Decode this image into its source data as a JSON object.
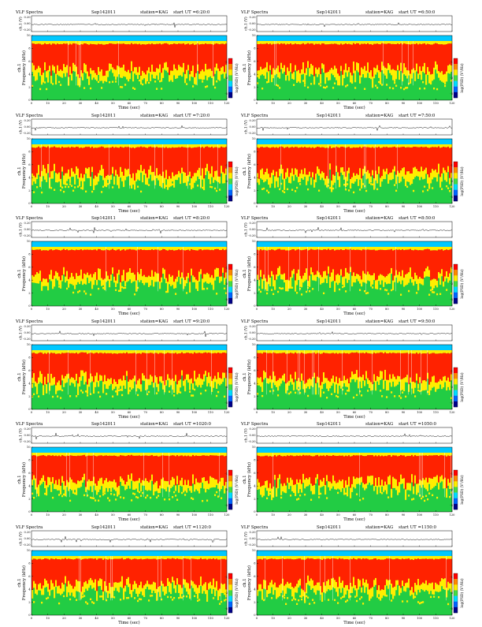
{
  "common": {
    "title": "VLF Spectra",
    "date": "Sep142011",
    "station": "station=KAG",
    "start_prefix": "start  UT",
    "ch_label": "ch.1 (V)",
    "ch_ticks": [
      "0.20",
      "0.00",
      "-0.20"
    ],
    "ylabel_top": "ch.1",
    "ylabel": "Frequency  (kHz)",
    "xlabel": "Time  (sec)",
    "x_ticks": [
      "0",
      "10",
      "20",
      "30",
      "40",
      "50",
      "60",
      "70",
      "80",
      "90",
      "100",
      "110",
      "120"
    ],
    "y_ticks": [
      "0",
      "2",
      "4",
      "6",
      "8",
      "10"
    ],
    "cbar_label": "log(PSD) (V²/Hz)",
    "cbar_ticks": [
      "-1",
      "-3",
      "-5"
    ]
  },
  "colors": {
    "background_band": "#00c8ff",
    "low": "#22cc44",
    "mid": "#ffee00",
    "high": "#ff2200",
    "colorbar": [
      "#ff0000",
      "#ff8800",
      "#ffee00",
      "#44dd44",
      "#00ddff",
      "#0066ff",
      "#000088"
    ]
  },
  "chart_data": [
    {
      "type": "heatmap",
      "title": "VLF Spectra",
      "start_ut": "=6:20:0",
      "xlabel": "Time  (sec)",
      "ylabel": "Frequency  (kHz)",
      "xlim": [
        0,
        120
      ],
      "ylim": [
        0,
        10
      ],
      "waveform_ylim": [
        -0.2,
        0.2
      ],
      "colorbar_label": "log(PSD) (V²/Hz)"
    },
    {
      "type": "heatmap",
      "title": "VLF Spectra",
      "start_ut": "=6:50:0",
      "xlabel": "Time  (sec)",
      "ylabel": "Frequency  (kHz)",
      "xlim": [
        0,
        120
      ],
      "ylim": [
        0,
        10
      ],
      "waveform_ylim": [
        -0.2,
        0.2
      ],
      "colorbar_label": "log(PSD) (V²/Hz)"
    },
    {
      "type": "heatmap",
      "title": "VLF Spectra",
      "start_ut": "=7:20:0",
      "xlabel": "Time  (sec)",
      "ylabel": "Frequency  (kHz)",
      "xlim": [
        0,
        120
      ],
      "ylim": [
        0,
        10
      ],
      "waveform_ylim": [
        -0.2,
        0.2
      ],
      "colorbar_label": "log(PSD) (V²/Hz)"
    },
    {
      "type": "heatmap",
      "title": "VLF Spectra",
      "start_ut": "=7:50:0",
      "xlabel": "Time  (sec)",
      "ylabel": "Frequency  (kHz)",
      "xlim": [
        0,
        120
      ],
      "ylim": [
        0,
        10
      ],
      "waveform_ylim": [
        -0.2,
        0.2
      ],
      "colorbar_label": "log(PSD) (V²/Hz)"
    },
    {
      "type": "heatmap",
      "title": "VLF Spectra",
      "start_ut": "=8:20:0",
      "xlabel": "Time  (sec)",
      "ylabel": "Frequency  (kHz)",
      "xlim": [
        0,
        120
      ],
      "ylim": [
        0,
        10
      ],
      "waveform_ylim": [
        -0.2,
        0.2
      ],
      "colorbar_label": "log(PSD) (V²/Hz)"
    },
    {
      "type": "heatmap",
      "title": "VLF Spectra",
      "start_ut": "=8:50:0",
      "xlabel": "Time  (sec)",
      "ylabel": "Frequency  (kHz)",
      "xlim": [
        0,
        120
      ],
      "ylim": [
        0,
        10
      ],
      "waveform_ylim": [
        -0.2,
        0.2
      ],
      "colorbar_label": "log(PSD) (V²/Hz)"
    },
    {
      "type": "heatmap",
      "title": "VLF Spectra",
      "start_ut": "=9:20:0",
      "xlabel": "Time  (sec)",
      "ylabel": "Frequency  (kHz)",
      "xlim": [
        0,
        120
      ],
      "ylim": [
        0,
        10
      ],
      "waveform_ylim": [
        -0.2,
        0.2
      ],
      "colorbar_label": "log(PSD) (V²/Hz)"
    },
    {
      "type": "heatmap",
      "title": "VLF Spectra",
      "start_ut": "=9:50:0",
      "xlabel": "Time  (sec)",
      "ylabel": "Frequency  (kHz)",
      "xlim": [
        0,
        120
      ],
      "ylim": [
        0,
        10
      ],
      "waveform_ylim": [
        -0.2,
        0.2
      ],
      "colorbar_label": "log(PSD) (V²/Hz)"
    },
    {
      "type": "heatmap",
      "title": "VLF Spectra",
      "start_ut": "=1020:0",
      "xlabel": "Time  (sec)",
      "ylabel": "Frequency  (kHz)",
      "xlim": [
        0,
        120
      ],
      "ylim": [
        0,
        10
      ],
      "waveform_ylim": [
        -0.2,
        0.2
      ],
      "colorbar_label": "log(PSD) (V²/Hz)"
    },
    {
      "type": "heatmap",
      "title": "VLF Spectra",
      "start_ut": "=1050:0",
      "xlabel": "Time  (sec)",
      "ylabel": "Frequency  (kHz)",
      "xlim": [
        0,
        120
      ],
      "ylim": [
        0,
        10
      ],
      "waveform_ylim": [
        -0.2,
        0.2
      ],
      "colorbar_label": "log(PSD) (V²/Hz)"
    },
    {
      "type": "heatmap",
      "title": "VLF Spectra",
      "start_ut": "=1120:0",
      "xlabel": "Time  (sec)",
      "ylabel": "Frequency  (kHz)",
      "xlim": [
        0,
        120
      ],
      "ylim": [
        0,
        10
      ],
      "waveform_ylim": [
        -0.2,
        0.2
      ],
      "colorbar_label": "log(PSD) (V²/Hz)"
    },
    {
      "type": "heatmap",
      "title": "VLF Spectra",
      "start_ut": "=1150:0",
      "xlabel": "Time  (sec)",
      "ylabel": "Frequency  (kHz)",
      "xlim": [
        0,
        120
      ],
      "ylim": [
        0,
        10
      ],
      "waveform_ylim": [
        -0.2,
        0.2
      ],
      "colorbar_label": "log(PSD) (V²/Hz)"
    }
  ]
}
